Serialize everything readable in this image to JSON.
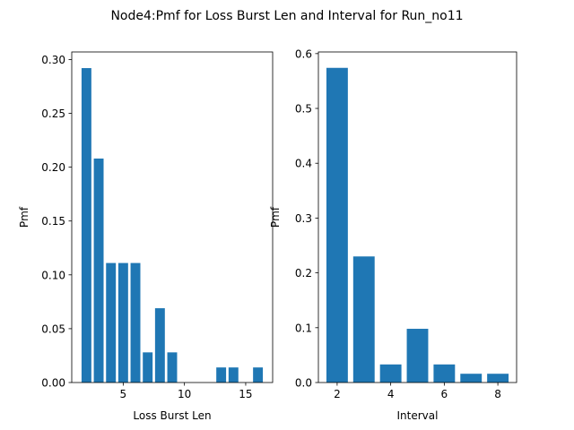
{
  "figure_title": "Node4:Pmf for Loss Burst Len and Interval for Run_no11",
  "bar_color": "#1f77b4",
  "chart_data": [
    {
      "type": "bar",
      "xlabel": "Loss Burst Len",
      "ylabel": "Pmf",
      "x": [
        2,
        3,
        4,
        5,
        6,
        7,
        8,
        9,
        13,
        14,
        16
      ],
      "values": [
        0.292,
        0.208,
        0.111,
        0.111,
        0.111,
        0.028,
        0.069,
        0.028,
        0.014,
        0.014,
        0.014
      ],
      "xlim": [
        0.8,
        17.2
      ],
      "ylim": [
        0,
        0.307
      ],
      "xticks": [
        5,
        10,
        15
      ],
      "xtick_labels": [
        "5",
        "10",
        "15"
      ],
      "yticks": [
        0,
        0.05,
        0.1,
        0.15,
        0.2,
        0.25,
        0.3
      ],
      "ytick_labels": [
        "0.00",
        "0.05",
        "0.10",
        "0.15",
        "0.20",
        "0.25",
        "0.30"
      ],
      "bar_width": 0.8
    },
    {
      "type": "bar",
      "xlabel": "Interval",
      "ylabel": "Pmf",
      "x": [
        2,
        3,
        4,
        5,
        6,
        7,
        8
      ],
      "values": [
        0.574,
        0.23,
        0.033,
        0.098,
        0.033,
        0.016,
        0.016
      ],
      "xlim": [
        1.3,
        8.7
      ],
      "ylim": [
        0,
        0.603
      ],
      "xticks": [
        2,
        4,
        6,
        8
      ],
      "xtick_labels": [
        "2",
        "4",
        "6",
        "8"
      ],
      "yticks": [
        0,
        0.1,
        0.2,
        0.3,
        0.4,
        0.5,
        0.6
      ],
      "ytick_labels": [
        "0.0",
        "0.1",
        "0.2",
        "0.3",
        "0.4",
        "0.5",
        "0.6"
      ],
      "bar_width": 0.8
    }
  ]
}
